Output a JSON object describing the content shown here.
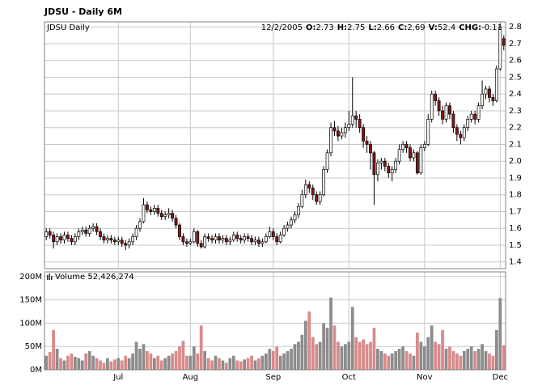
{
  "chart_data": {
    "type": "candlestick",
    "title": "JDSU - Daily 6M",
    "label": "JDSU Daily",
    "info": {
      "date": "12/2/2005",
      "fields": [
        {
          "label": "O:",
          "value": 2.73
        },
        {
          "label": "H:",
          "value": 2.75
        },
        {
          "label": "L:",
          "value": 2.66
        },
        {
          "label": "C:",
          "value": 2.69
        },
        {
          "label": "V:",
          "value": 52.4
        },
        {
          "label": "CHG:",
          "value": -0.11
        }
      ]
    },
    "categories": [
      null,
      null,
      null,
      null,
      null,
      null,
      null,
      null,
      null,
      null,
      null,
      null,
      null,
      null,
      null,
      null,
      null,
      null,
      null,
      null,
      "Jul",
      null,
      null,
      null,
      null,
      null,
      null,
      null,
      null,
      null,
      null,
      null,
      null,
      null,
      null,
      null,
      null,
      null,
      null,
      null,
      "Aug",
      null,
      null,
      null,
      null,
      null,
      null,
      null,
      null,
      null,
      null,
      null,
      null,
      null,
      null,
      null,
      null,
      null,
      null,
      null,
      null,
      null,
      null,
      "Sep",
      null,
      null,
      null,
      null,
      null,
      null,
      null,
      null,
      null,
      null,
      null,
      null,
      null,
      null,
      null,
      null,
      null,
      null,
      null,
      null,
      "Oct",
      null,
      null,
      null,
      null,
      null,
      null,
      null,
      null,
      null,
      null,
      null,
      null,
      null,
      null,
      null,
      null,
      null,
      null,
      null,
      null,
      "Nov",
      null,
      null,
      null,
      null,
      null,
      null,
      null,
      null,
      null,
      null,
      null,
      null,
      null,
      null,
      null,
      null,
      null,
      null,
      null,
      null,
      "Dec",
      null
    ],
    "open": [
      1.55,
      1.58,
      1.56,
      1.52,
      1.55,
      1.53,
      1.56,
      1.54,
      1.52,
      1.55,
      1.58,
      1.59,
      1.57,
      1.6,
      1.61,
      1.58,
      1.55,
      1.53,
      1.54,
      1.53,
      1.52,
      1.53,
      1.51,
      1.5,
      1.52,
      1.55,
      1.6,
      1.64,
      1.74,
      1.71,
      1.7,
      1.72,
      1.69,
      1.67,
      1.68,
      1.69,
      1.66,
      1.62,
      1.55,
      1.52,
      1.51,
      1.52,
      1.58,
      1.51,
      1.49,
      1.55,
      1.54,
      1.53,
      1.55,
      1.53,
      1.54,
      1.52,
      1.53,
      1.56,
      1.54,
      1.53,
      1.55,
      1.54,
      1.52,
      1.53,
      1.51,
      1.52,
      1.55,
      1.58,
      1.55,
      1.52,
      1.56,
      1.6,
      1.62,
      1.65,
      1.68,
      1.73,
      1.8,
      1.86,
      1.84,
      1.8,
      1.76,
      1.8,
      1.95,
      2.05,
      2.2,
      2.18,
      2.15,
      2.17,
      2.2,
      2.22,
      2.27,
      2.25,
      2.2,
      2.12,
      2.1,
      2.05,
      1.92,
      1.99,
      2.0,
      1.97,
      1.93,
      1.95,
      2.0,
      2.07,
      2.1,
      2.08,
      2.02,
      2.05,
      1.93,
      2.08,
      2.1,
      2.25,
      2.4,
      2.36,
      2.3,
      2.25,
      2.33,
      2.28,
      2.2,
      2.16,
      2.14,
      2.2,
      2.25,
      2.28,
      2.25,
      2.33,
      2.4,
      2.43,
      2.38,
      2.36,
      2.55,
      2.73
    ],
    "high": [
      1.6,
      1.6,
      1.58,
      1.57,
      1.57,
      1.58,
      1.58,
      1.56,
      1.57,
      1.6,
      1.61,
      1.61,
      1.62,
      1.63,
      1.63,
      1.6,
      1.57,
      1.56,
      1.56,
      1.55,
      1.55,
      1.55,
      1.53,
      1.54,
      1.57,
      1.62,
      1.66,
      1.78,
      1.76,
      1.73,
      1.74,
      1.74,
      1.71,
      1.7,
      1.72,
      1.71,
      1.68,
      1.63,
      1.57,
      1.54,
      1.54,
      1.6,
      1.59,
      1.53,
      1.57,
      1.57,
      1.56,
      1.57,
      1.57,
      1.56,
      1.56,
      1.55,
      1.58,
      1.58,
      1.56,
      1.57,
      1.57,
      1.56,
      1.55,
      1.55,
      1.54,
      1.57,
      1.61,
      1.6,
      1.57,
      1.58,
      1.62,
      1.64,
      1.67,
      1.7,
      1.75,
      1.83,
      1.89,
      1.88,
      1.86,
      1.82,
      1.82,
      1.97,
      2.07,
      2.23,
      2.24,
      2.21,
      2.2,
      2.23,
      2.3,
      2.5,
      2.3,
      2.28,
      2.22,
      2.15,
      2.12,
      2.06,
      2.01,
      2.02,
      2.02,
      1.99,
      1.97,
      2.02,
      2.1,
      2.12,
      2.12,
      2.1,
      2.07,
      2.06,
      2.1,
      2.12,
      2.28,
      2.42,
      2.42,
      2.38,
      2.33,
      2.35,
      2.35,
      2.3,
      2.22,
      2.18,
      2.22,
      2.27,
      2.3,
      2.3,
      2.35,
      2.48,
      2.45,
      2.45,
      2.4,
      2.57,
      2.82,
      2.75
    ],
    "low": [
      1.53,
      1.54,
      1.48,
      1.5,
      1.51,
      1.51,
      1.52,
      1.5,
      1.5,
      1.53,
      1.56,
      1.55,
      1.55,
      1.58,
      1.56,
      1.53,
      1.51,
      1.51,
      1.51,
      1.5,
      1.5,
      1.49,
      1.47,
      1.48,
      1.5,
      1.53,
      1.58,
      1.63,
      1.69,
      1.68,
      1.68,
      1.67,
      1.65,
      1.65,
      1.66,
      1.64,
      1.6,
      1.53,
      1.5,
      1.49,
      1.5,
      1.51,
      1.49,
      1.48,
      1.48,
      1.52,
      1.51,
      1.51,
      1.51,
      1.51,
      1.5,
      1.5,
      1.52,
      1.52,
      1.51,
      1.51,
      1.52,
      1.5,
      1.5,
      1.49,
      1.49,
      1.51,
      1.54,
      1.53,
      1.5,
      1.51,
      1.55,
      1.58,
      1.6,
      1.63,
      1.66,
      1.72,
      1.78,
      1.81,
      1.77,
      1.74,
      1.74,
      1.79,
      1.93,
      2.03,
      2.15,
      2.12,
      2.13,
      2.14,
      2.18,
      2.2,
      2.2,
      2.17,
      2.08,
      2.05,
      1.95,
      1.74,
      1.88,
      1.95,
      1.94,
      1.9,
      1.88,
      1.93,
      1.98,
      2.05,
      2.05,
      2.0,
      2.0,
      1.92,
      1.92,
      2.06,
      2.09,
      2.23,
      2.33,
      2.27,
      2.22,
      2.23,
      2.25,
      2.17,
      2.12,
      2.1,
      2.12,
      2.18,
      2.23,
      2.22,
      2.23,
      2.31,
      2.37,
      2.35,
      2.33,
      2.35,
      2.54,
      2.66
    ],
    "close": [
      1.58,
      1.56,
      1.52,
      1.55,
      1.53,
      1.56,
      1.54,
      1.52,
      1.55,
      1.58,
      1.59,
      1.57,
      1.6,
      1.61,
      1.58,
      1.55,
      1.53,
      1.54,
      1.53,
      1.52,
      1.53,
      1.51,
      1.5,
      1.52,
      1.55,
      1.6,
      1.64,
      1.74,
      1.71,
      1.7,
      1.72,
      1.69,
      1.67,
      1.68,
      1.69,
      1.66,
      1.62,
      1.55,
      1.52,
      1.51,
      1.52,
      1.58,
      1.51,
      1.49,
      1.55,
      1.54,
      1.53,
      1.55,
      1.53,
      1.54,
      1.52,
      1.53,
      1.56,
      1.54,
      1.53,
      1.55,
      1.54,
      1.52,
      1.53,
      1.51,
      1.52,
      1.55,
      1.58,
      1.55,
      1.52,
      1.56,
      1.6,
      1.62,
      1.65,
      1.68,
      1.73,
      1.8,
      1.86,
      1.84,
      1.8,
      1.76,
      1.8,
      1.95,
      2.05,
      2.2,
      2.18,
      2.15,
      2.17,
      2.2,
      2.22,
      2.27,
      2.25,
      2.2,
      2.12,
      2.1,
      2.05,
      1.92,
      1.99,
      2.0,
      1.97,
      1.93,
      1.95,
      2.0,
      2.07,
      2.1,
      2.08,
      2.02,
      2.05,
      1.93,
      2.08,
      2.1,
      2.25,
      2.4,
      2.36,
      2.3,
      2.25,
      2.33,
      2.28,
      2.2,
      2.16,
      2.14,
      2.2,
      2.25,
      2.28,
      2.25,
      2.33,
      2.4,
      2.43,
      2.38,
      2.36,
      2.55,
      2.8,
      2.69
    ],
    "up_color": "#ffffff",
    "down_color": "#8b1414",
    "ylim": [
      1.36,
      2.83
    ],
    "yticks": [
      1.4,
      1.5,
      1.6,
      1.7,
      1.8,
      1.9,
      {
        "value": 2,
        "label": "2.0"
      },
      2.1,
      2.2,
      2.3,
      2.4,
      2.5,
      2.6,
      2.7,
      2.8
    ],
    "grid": true,
    "volume": {
      "label": "Volume 52,426,274",
      "up_color": "#8c8c8c",
      "down_color": "#d98a8a",
      "ylim": [
        0,
        210000000
      ],
      "yticks": [
        {
          "value": 0,
          "label": "0M"
        },
        {
          "value": 50000000,
          "label": "50M"
        },
        {
          "value": 100000000,
          "label": "100M"
        },
        {
          "value": 150000000,
          "label": "150M"
        },
        {
          "value": 200000000,
          "label": "200M"
        }
      ],
      "values": [
        30000000,
        38000000,
        85000000,
        45000000,
        25000000,
        20000000,
        30000000,
        35000000,
        28000000,
        25000000,
        20000000,
        35000000,
        40000000,
        30000000,
        25000000,
        20000000,
        15000000,
        25000000,
        18000000,
        22000000,
        25000000,
        20000000,
        30000000,
        25000000,
        35000000,
        60000000,
        45000000,
        55000000,
        40000000,
        35000000,
        25000000,
        30000000,
        20000000,
        25000000,
        30000000,
        35000000,
        40000000,
        50000000,
        62000000,
        30000000,
        30000000,
        50000000,
        35000000,
        95000000,
        40000000,
        25000000,
        20000000,
        30000000,
        25000000,
        20000000,
        15000000,
        25000000,
        30000000,
        20000000,
        18000000,
        22000000,
        25000000,
        30000000,
        20000000,
        25000000,
        30000000,
        35000000,
        45000000,
        40000000,
        50000000,
        30000000,
        35000000,
        40000000,
        45000000,
        55000000,
        60000000,
        75000000,
        105000000,
        125000000,
        70000000,
        55000000,
        60000000,
        100000000,
        90000000,
        155000000,
        95000000,
        60000000,
        50000000,
        55000000,
        60000000,
        135000000,
        70000000,
        60000000,
        65000000,
        55000000,
        60000000,
        90000000,
        45000000,
        40000000,
        35000000,
        30000000,
        35000000,
        40000000,
        45000000,
        50000000,
        40000000,
        35000000,
        30000000,
        80000000,
        60000000,
        50000000,
        70000000,
        95000000,
        60000000,
        55000000,
        85000000,
        45000000,
        50000000,
        40000000,
        35000000,
        30000000,
        40000000,
        45000000,
        50000000,
        40000000,
        45000000,
        55000000,
        40000000,
        35000000,
        30000000,
        85000000,
        154000000,
        52426274
      ]
    }
  }
}
